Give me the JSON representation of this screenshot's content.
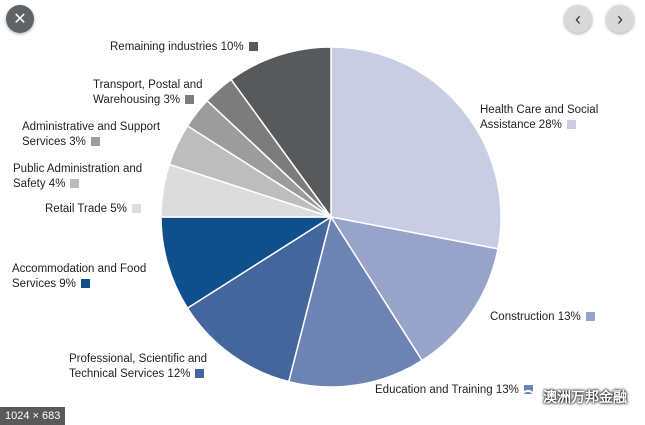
{
  "viewer": {
    "close_glyph": "✕",
    "prev_glyph": "‹",
    "next_glyph": "›",
    "dimensions": "1024 × 683",
    "watermark": "澳洲万邦金融"
  },
  "colors": {
    "slice_borders": "#ffffff"
  },
  "chart_data": {
    "type": "pie",
    "title": "",
    "slices": [
      {
        "label_lines": [
          "Health Care and Social",
          "Assistance 28%"
        ],
        "value": 28,
        "color": "#c8cde4"
      },
      {
        "label_lines": [
          "Construction 13%"
        ],
        "value": 13,
        "color": "#97a3c8"
      },
      {
        "label_lines": [
          "Education and Training 13%"
        ],
        "value": 13,
        "color": "#6d83b4"
      },
      {
        "label_lines": [
          "Professional, Scientific and",
          "Technical Services 12%"
        ],
        "value": 12,
        "color": "#44669d"
      },
      {
        "label_lines": [
          "Accommodation and Food",
          "Services 9%"
        ],
        "value": 9,
        "color": "#0e4f8c"
      },
      {
        "label_lines": [
          "Retail Trade 5%"
        ],
        "value": 5,
        "color": "#dcdcdc"
      },
      {
        "label_lines": [
          "Public Administration and",
          "Safety 4%"
        ],
        "value": 4,
        "color": "#bdbdbd"
      },
      {
        "label_lines": [
          "Administrative and Support",
          "Services 3%"
        ],
        "value": 3,
        "color": "#9c9c9c"
      },
      {
        "label_lines": [
          "Transport, Postal and",
          "Warehousing 3%"
        ],
        "value": 3,
        "color": "#7c7c7c"
      },
      {
        "label_lines": [
          "Remaining industries 10%"
        ],
        "value": 10,
        "color": "#58595b"
      }
    ]
  }
}
